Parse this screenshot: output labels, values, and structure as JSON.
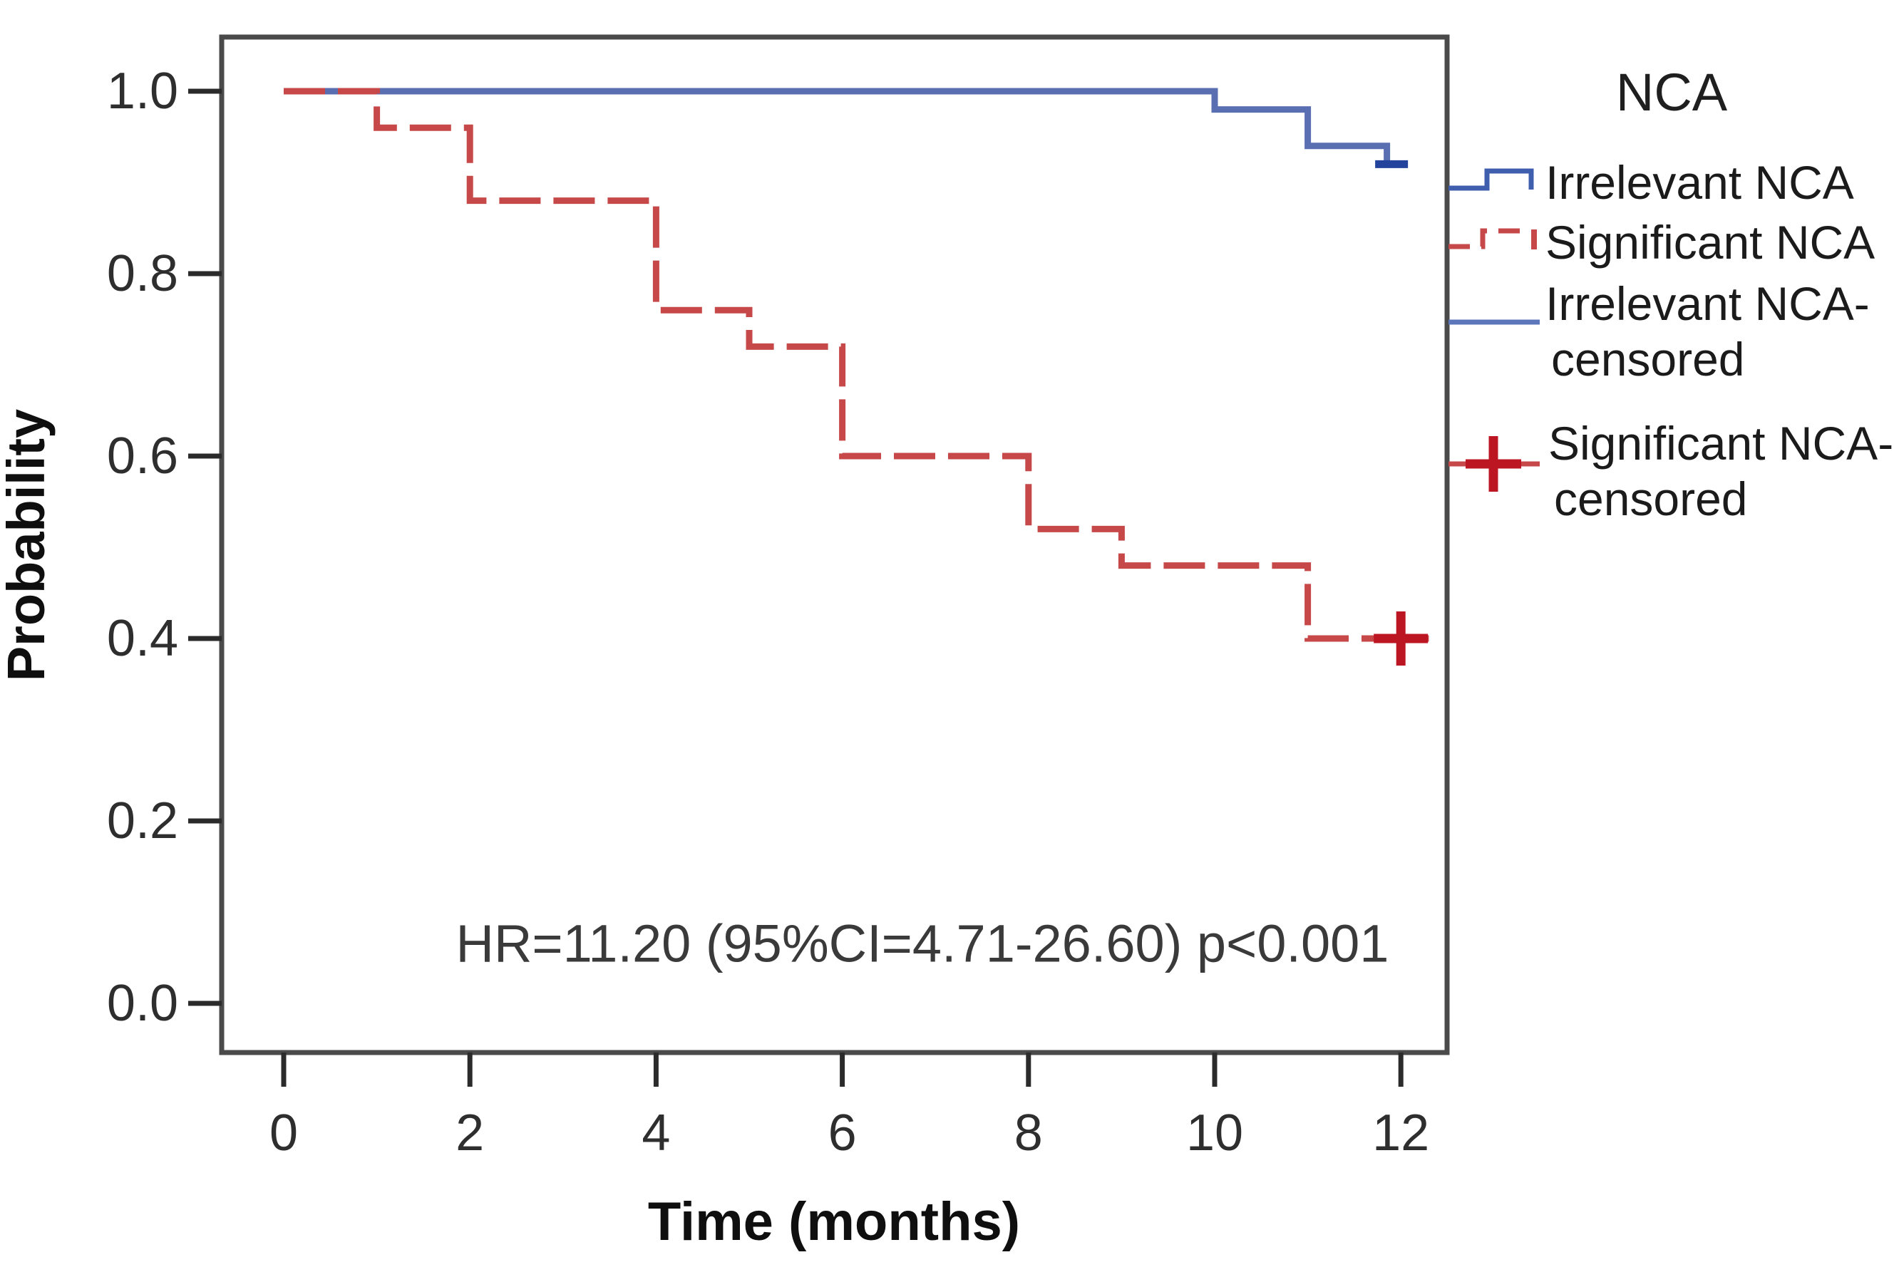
{
  "figure": {
    "y_axis": {
      "title": "Probability",
      "tick_labels": [
        "1.0",
        "0.8",
        "0.6",
        "0.4",
        "0.2",
        "0.0"
      ]
    },
    "x_axis": {
      "title": "Time (months)",
      "tick_labels": [
        "0",
        "2",
        "4",
        "6",
        "8",
        "10",
        "12"
      ]
    },
    "annotation": {
      "text": "HR=11.20 (95%CI=4.71-26.60) p<0.001"
    },
    "legend": {
      "title": "NCA",
      "items": [
        {
          "label": "Irrelevant NCA",
          "lines": [
            "Irrelevant NCA"
          ],
          "symbol": "blue-step",
          "color": "#3f5eae"
        },
        {
          "label": "Significant NCA",
          "lines": [
            "Significant NCA"
          ],
          "symbol": "red-dashed-step",
          "color": "#c64848"
        },
        {
          "label": "Irrelevant NCA-censored",
          "lines": [
            "Irrelevant NCA-",
            "censored"
          ],
          "symbol": "blue-line",
          "color": "#5b76bb"
        },
        {
          "label": "Significant NCA-censored",
          "lines": [
            "Significant NCA-",
            "censored"
          ],
          "symbol": "red-plus-line",
          "color": "#bb1622"
        }
      ]
    },
    "colors": {
      "irrelevant_line": "#5a6fb2",
      "irrelevant_censor_tick": "#24439c",
      "significant_line": "#c64848",
      "significant_censor_plus": "#bb1622",
      "frame": "#4a4a4a",
      "background": "#ffffff"
    }
  },
  "chart_data": {
    "type": "line",
    "subtype": "kaplan-meier-step",
    "title": "",
    "xlabel": "Time (months)",
    "ylabel": "Probability",
    "xlim": [
      0,
      12.5
    ],
    "ylim": [
      0.0,
      1.0
    ],
    "x_ticks": [
      0,
      2,
      4,
      6,
      8,
      10,
      12
    ],
    "y_ticks": [
      1.0,
      0.8,
      0.6,
      0.4,
      0.2,
      0.0
    ],
    "grid": false,
    "legend_position": "right",
    "legend_title": "NCA",
    "annotation": "HR=11.20 (95%CI=4.71-26.60) p<0.001",
    "series": [
      {
        "name": "Irrelevant NCA",
        "style": "solid",
        "color": "#5a6fb2",
        "line_width": 9,
        "steps": [
          [
            0,
            1.0
          ],
          [
            10,
            0.98
          ],
          [
            11,
            0.94
          ],
          [
            11.85,
            0.92
          ]
        ],
        "end_x": 11.9,
        "censored": {
          "marker": "tick",
          "color": "#24439c",
          "points": [
            [
              11.9,
              0.92
            ]
          ]
        }
      },
      {
        "name": "Significant NCA",
        "style": "dashed",
        "color": "#c64848",
        "line_width": 9,
        "steps": [
          [
            0,
            1.0
          ],
          [
            1,
            0.96
          ],
          [
            2,
            0.88
          ],
          [
            4,
            0.76
          ],
          [
            5,
            0.72
          ],
          [
            6,
            0.6
          ],
          [
            8,
            0.52
          ],
          [
            9,
            0.48
          ],
          [
            11,
            0.4
          ]
        ],
        "end_x": 12.3,
        "censored": {
          "marker": "plus",
          "color": "#bb1622",
          "points": [
            [
              12,
              0.4
            ]
          ]
        }
      }
    ]
  }
}
